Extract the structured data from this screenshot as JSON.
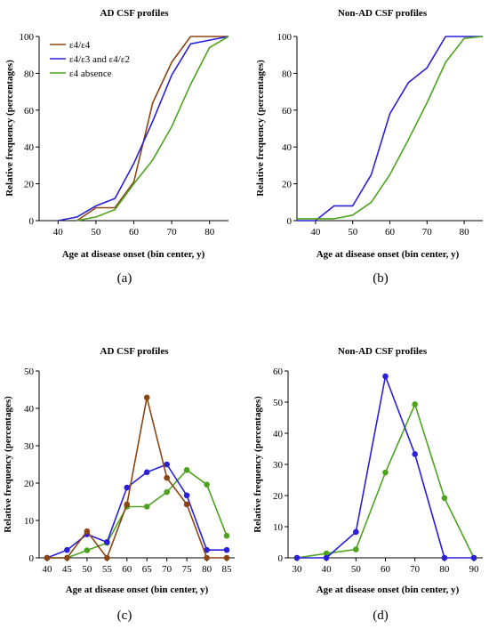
{
  "colors": {
    "e4e4": "#8B4513",
    "e4e3": "#2A1FD6",
    "absence": "#4EA31E"
  },
  "captions": [
    "(a)",
    "(b)",
    "(c)",
    "(d)"
  ],
  "chart_data": [
    {
      "type": "line",
      "title": "AD CSF profiles",
      "xlabel": "Age at disease onset (bin center, y)",
      "ylabel": "Relative frequency (percentages)",
      "xlim": [
        35,
        85
      ],
      "ylim": [
        0,
        100
      ],
      "xticks": [
        40,
        50,
        60,
        70,
        80
      ],
      "yticks": [
        0,
        20,
        40,
        60,
        80,
        100
      ],
      "grid": false,
      "legend": "top-left",
      "series": [
        {
          "name": "ε4/ε4",
          "color_key": "e4e4",
          "points": [
            [
              45,
              0
            ],
            [
              50,
              7
            ],
            [
              55,
              7
            ],
            [
              60,
              21
            ],
            [
              65,
              64
            ],
            [
              70,
              86
            ],
            [
              75,
              100
            ],
            [
              80,
              100
            ],
            [
              85,
              100
            ]
          ]
        },
        {
          "name": "ε4/ε3 and ε4/ε2",
          "color_key": "e4e3",
          "points": [
            [
              40,
              0
            ],
            [
              45,
              2
            ],
            [
              50,
              8
            ],
            [
              55,
              12
            ],
            [
              60,
              31
            ],
            [
              65,
              54
            ],
            [
              70,
              79
            ],
            [
              75,
              96
            ],
            [
              80,
              98
            ],
            [
              85,
              100
            ]
          ]
        },
        {
          "name": "ε4 absence",
          "color_key": "absence",
          "points": [
            [
              45,
              0
            ],
            [
              50,
              2
            ],
            [
              55,
              6
            ],
            [
              60,
              20
            ],
            [
              65,
              33
            ],
            [
              70,
              51
            ],
            [
              75,
              74
            ],
            [
              80,
              94
            ],
            [
              85,
              100
            ]
          ]
        }
      ]
    },
    {
      "type": "line",
      "title": "Non-AD CSF profiles",
      "xlabel": "Age at disease onset (bin center, y)",
      "ylabel": "Relative frequency (percentages)",
      "xlim": [
        35,
        85
      ],
      "ylim": [
        0,
        100
      ],
      "xticks": [
        40,
        50,
        60,
        70,
        80
      ],
      "yticks": [
        0,
        20,
        40,
        60,
        80,
        100
      ],
      "grid": false,
      "series": [
        {
          "color_key": "e4e3",
          "points": [
            [
              35,
              0
            ],
            [
              40,
              0
            ],
            [
              45,
              8
            ],
            [
              50,
              8
            ],
            [
              55,
              25
            ],
            [
              60,
              58
            ],
            [
              65,
              75
            ],
            [
              70,
              83
            ],
            [
              75,
              100
            ],
            [
              80,
              100
            ],
            [
              85,
              100
            ]
          ]
        },
        {
          "color_key": "absence",
          "points": [
            [
              35,
              1
            ],
            [
              40,
              1
            ],
            [
              45,
              1
            ],
            [
              50,
              3
            ],
            [
              55,
              10
            ],
            [
              60,
              25
            ],
            [
              65,
              44
            ],
            [
              70,
              64
            ],
            [
              75,
              86
            ],
            [
              80,
              99
            ],
            [
              85,
              100
            ]
          ]
        }
      ]
    },
    {
      "type": "line",
      "title": "AD CSF profiles",
      "xlabel": "Age at disease onset (bin center, y)",
      "ylabel": "Relative frequency (percentages)",
      "xlim": [
        38,
        87
      ],
      "ylim": [
        0,
        50
      ],
      "xticks": [
        40,
        45,
        50,
        55,
        60,
        65,
        70,
        75,
        80,
        85
      ],
      "yticks": [
        0,
        10,
        20,
        30,
        40,
        50
      ],
      "grid": false,
      "markers": true,
      "series": [
        {
          "name": "ε4 absence",
          "color_key": "absence",
          "points": [
            [
              40,
              0
            ],
            [
              45,
              0
            ],
            [
              50,
              2
            ],
            [
              55,
              4
            ],
            [
              60,
              13.7
            ],
            [
              65,
              13.7
            ],
            [
              70,
              17.6
            ],
            [
              75,
              23.5
            ],
            [
              80,
              19.6
            ],
            [
              85,
              5.9
            ]
          ]
        },
        {
          "name": "ε4/ε3 and ε4/ε2",
          "color_key": "e4e3",
          "points": [
            [
              40,
              0
            ],
            [
              45,
              2.1
            ],
            [
              50,
              6.3
            ],
            [
              55,
              4.2
            ],
            [
              60,
              18.8
            ],
            [
              65,
              22.9
            ],
            [
              70,
              25
            ],
            [
              75,
              16.7
            ],
            [
              80,
              2.1
            ],
            [
              85,
              2.1
            ]
          ]
        },
        {
          "name": "ε4/ε4",
          "color_key": "e4e4",
          "points": [
            [
              40,
              0
            ],
            [
              45,
              0
            ],
            [
              50,
              7.1
            ],
            [
              55,
              0
            ],
            [
              60,
              14.3
            ],
            [
              65,
              42.9
            ],
            [
              70,
              21.4
            ],
            [
              75,
              14.3
            ],
            [
              80,
              0
            ],
            [
              85,
              0
            ]
          ]
        }
      ]
    },
    {
      "type": "line",
      "title": "Non-AD CSF profiles",
      "xlabel": "Age at disease onset (bin center, y)",
      "ylabel": "Relative frequency (percentages)",
      "xlim": [
        27,
        93
      ],
      "ylim": [
        0,
        60
      ],
      "xticks": [
        30,
        40,
        50,
        60,
        70,
        80,
        90
      ],
      "yticks": [
        0,
        10,
        20,
        30,
        40,
        50,
        60
      ],
      "grid": false,
      "markers": true,
      "series": [
        {
          "color_key": "absence",
          "points": [
            [
              30,
              0
            ],
            [
              40,
              1.4
            ],
            [
              50,
              2.7
            ],
            [
              60,
              27.4
            ],
            [
              70,
              49.3
            ],
            [
              80,
              19.2
            ],
            [
              90,
              0
            ]
          ]
        },
        {
          "color_key": "e4e3",
          "points": [
            [
              30,
              0
            ],
            [
              40,
              0
            ],
            [
              50,
              8.3
            ],
            [
              60,
              58.3
            ],
            [
              70,
              33.3
            ],
            [
              80,
              0
            ],
            [
              90,
              0
            ]
          ]
        }
      ]
    }
  ]
}
